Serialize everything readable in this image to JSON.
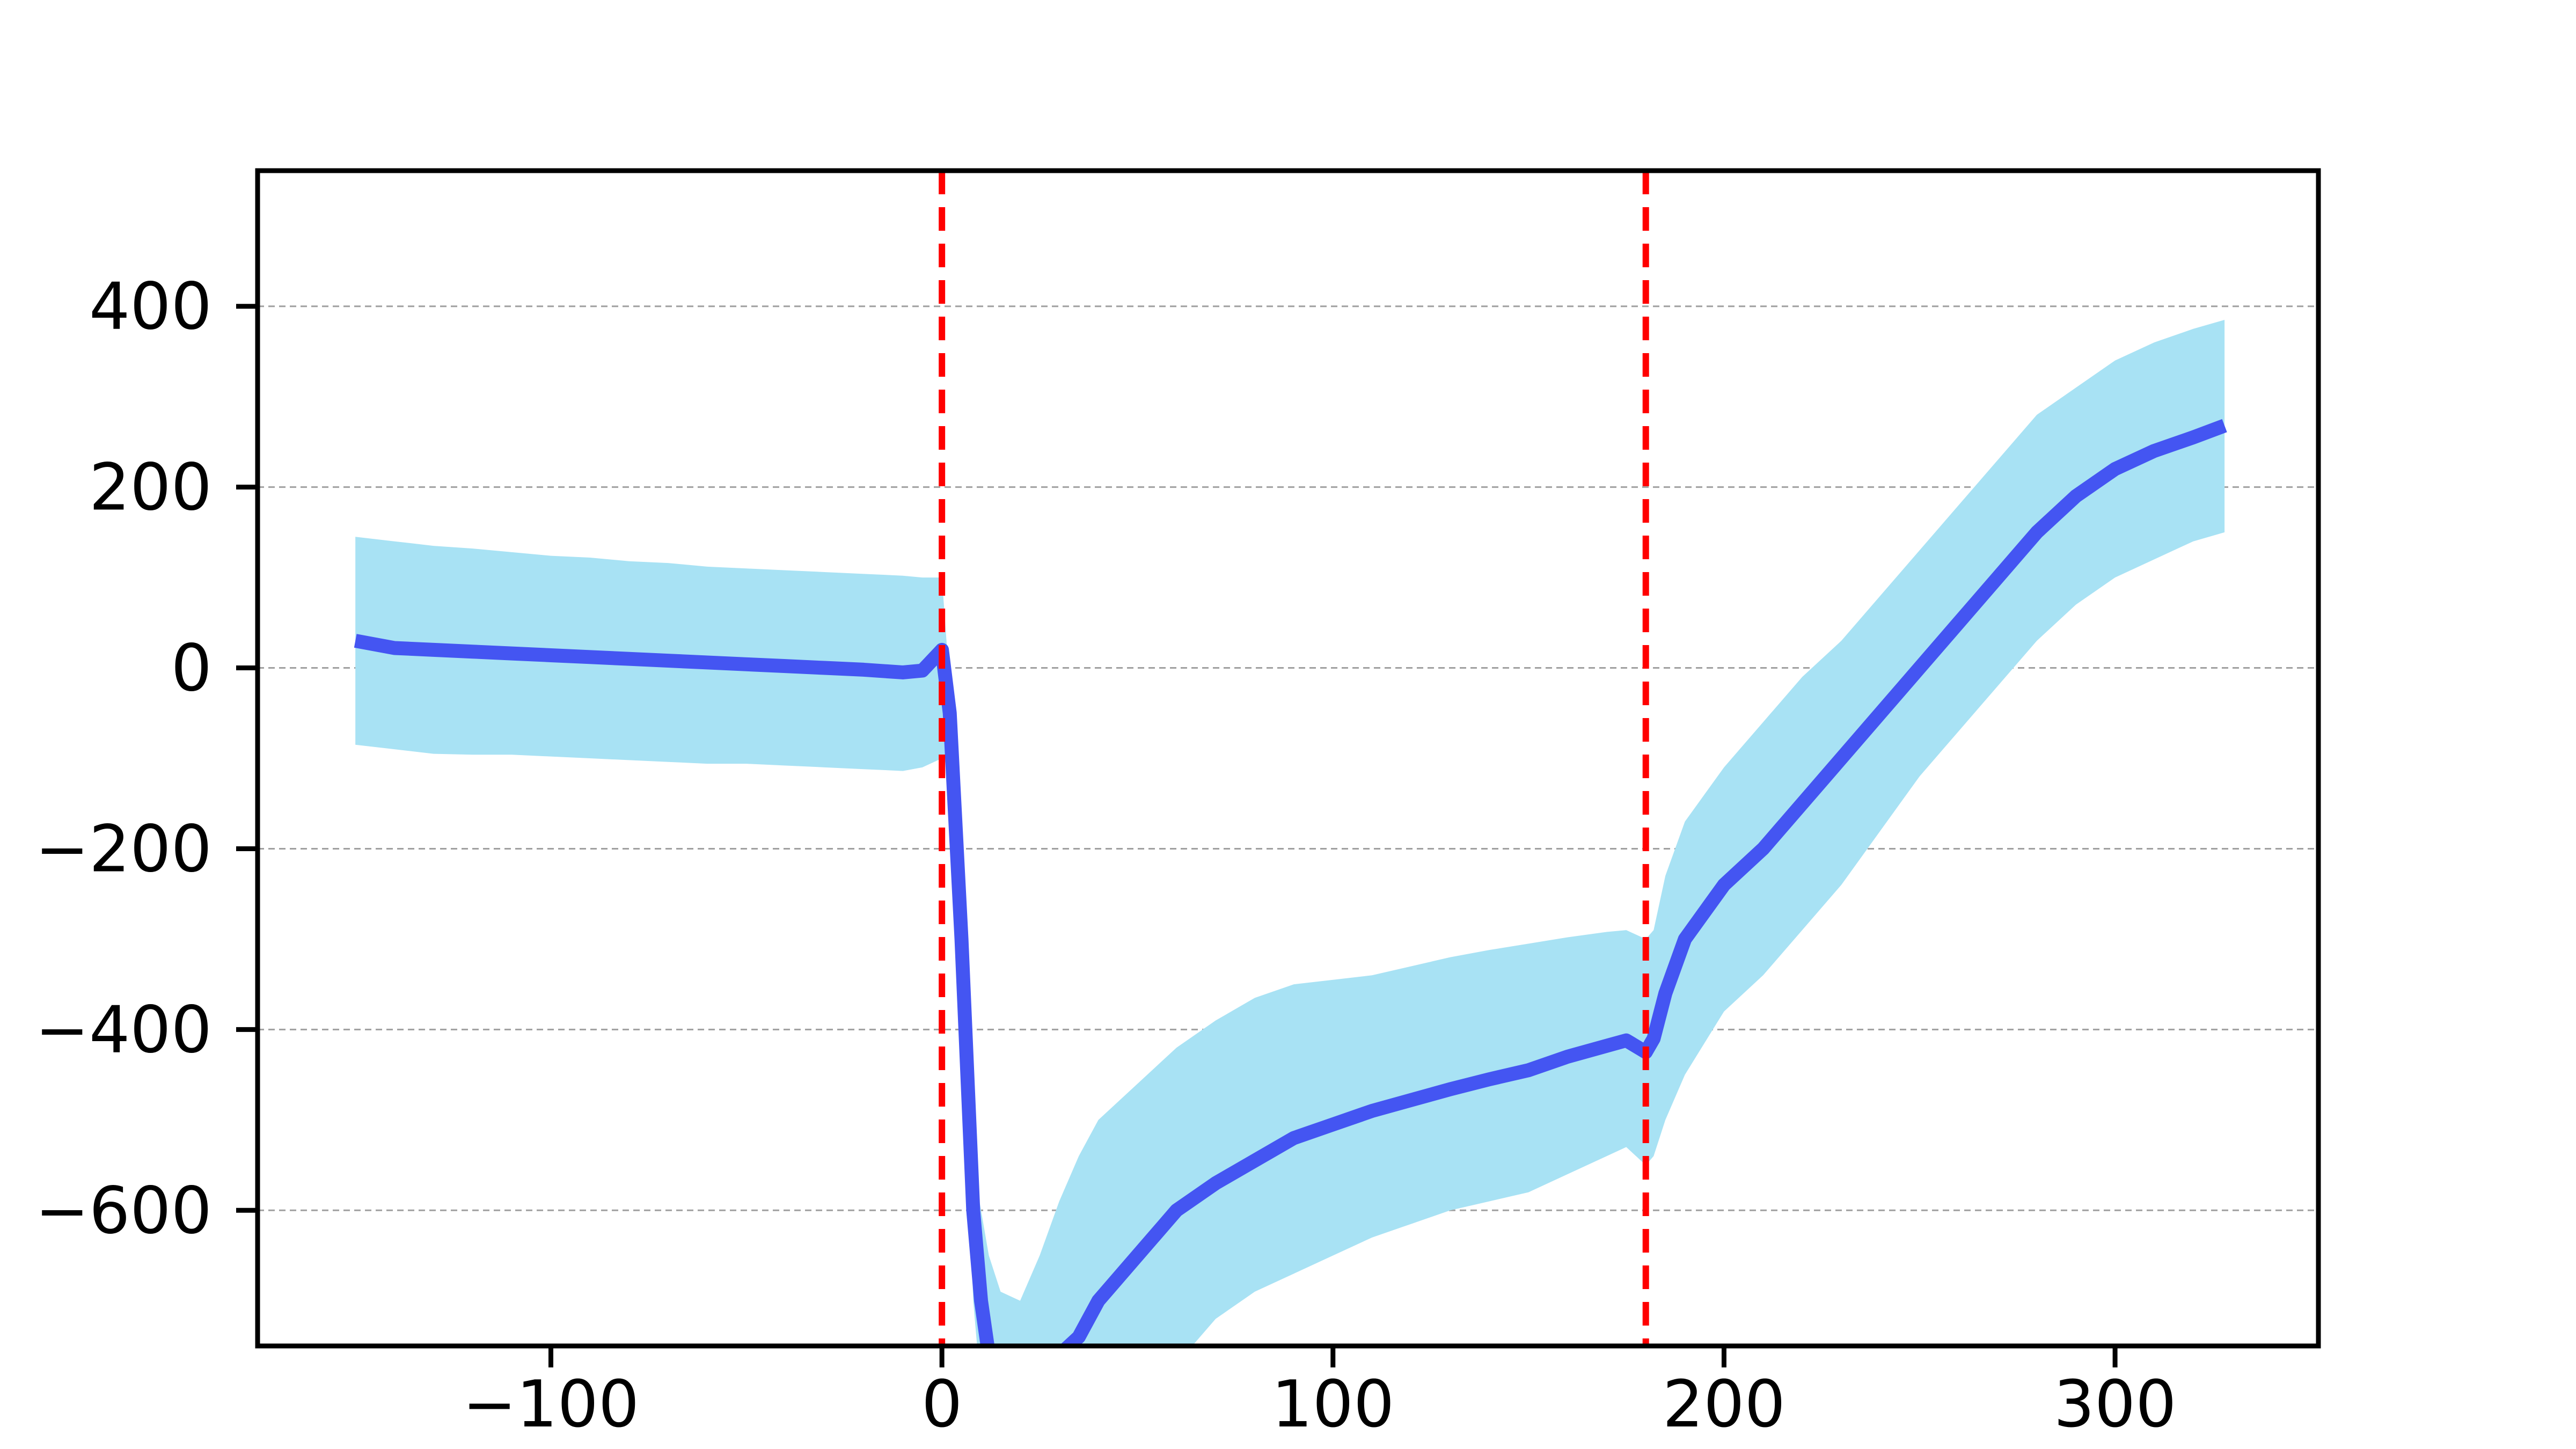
{
  "chart_data": {
    "type": "line",
    "title": "",
    "xlabel": "",
    "ylabel": "",
    "xlim": [
      -175,
      352
    ],
    "ylim": [
      -750,
      550
    ],
    "xticks": [
      -100,
      0,
      100,
      200,
      300
    ],
    "yticks": [
      400,
      200,
      0,
      -200,
      -400,
      -600
    ],
    "xtick_labels": [
      "−100",
      "0",
      "100",
      "200",
      "300"
    ],
    "ytick_labels": [
      "400",
      "200",
      "0",
      "−200",
      "−400",
      "−600"
    ],
    "grid": "horizontal dashed at y ticks",
    "vlines": [
      {
        "x": 0,
        "color": "#ff0000",
        "style": "dashed"
      },
      {
        "x": 180,
        "color": "#ff0000",
        "style": "dashed"
      }
    ],
    "series": [
      {
        "color": "#4455f2",
        "band_color": "#a8e2f4",
        "x": [
          -150,
          -140,
          -130,
          -120,
          -110,
          -100,
          -90,
          -80,
          -70,
          -60,
          -50,
          -40,
          -30,
          -20,
          -10,
          -5,
          0,
          2,
          5,
          8,
          10,
          12,
          15,
          20,
          25,
          30,
          35,
          40,
          50,
          60,
          70,
          80,
          90,
          100,
          110,
          120,
          130,
          140,
          150,
          160,
          170,
          175,
          180,
          182,
          185,
          190,
          200,
          210,
          220,
          230,
          240,
          250,
          260,
          270,
          280,
          290,
          300,
          310,
          320,
          328
        ],
        "values": [
          30,
          22,
          20,
          18,
          16,
          14,
          12,
          10,
          8,
          6,
          4,
          2,
          0,
          -2,
          -5,
          -3,
          20,
          -50,
          -300,
          -600,
          -700,
          -760,
          -800,
          -820,
          -790,
          -760,
          -740,
          -700,
          -650,
          -600,
          -570,
          -545,
          -520,
          -505,
          -490,
          -478,
          -466,
          -455,
          -445,
          -430,
          -418,
          -412,
          -425,
          -410,
          -360,
          -300,
          -240,
          -200,
          -150,
          -100,
          -50,
          0,
          50,
          100,
          150,
          190,
          220,
          240,
          255,
          268
        ],
        "upper": [
          145,
          140,
          135,
          132,
          128,
          124,
          122,
          118,
          116,
          112,
          110,
          108,
          106,
          104,
          102,
          100,
          100,
          -20,
          -300,
          -550,
          -600,
          -650,
          -690,
          -700,
          -650,
          -590,
          -540,
          -500,
          -460,
          -420,
          -390,
          -365,
          -350,
          -345,
          -340,
          -330,
          -320,
          -312,
          -305,
          -298,
          -292,
          -290,
          -300,
          -290,
          -230,
          -170,
          -110,
          -60,
          -10,
          30,
          80,
          130,
          180,
          230,
          280,
          310,
          340,
          360,
          375,
          385
        ],
        "lower": [
          -85,
          -90,
          -95,
          -96,
          -96,
          -98,
          -100,
          -102,
          -104,
          -106,
          -106,
          -108,
          -110,
          -112,
          -114,
          -110,
          -100,
          -110,
          -350,
          -700,
          -800,
          -870,
          -910,
          -940,
          -930,
          -920,
          -900,
          -880,
          -830,
          -770,
          -720,
          -690,
          -670,
          -650,
          -630,
          -615,
          -600,
          -590,
          -580,
          -560,
          -540,
          -530,
          -550,
          -540,
          -500,
          -450,
          -380,
          -340,
          -290,
          -240,
          -180,
          -120,
          -70,
          -20,
          30,
          70,
          100,
          120,
          140,
          150
        ]
      }
    ]
  }
}
